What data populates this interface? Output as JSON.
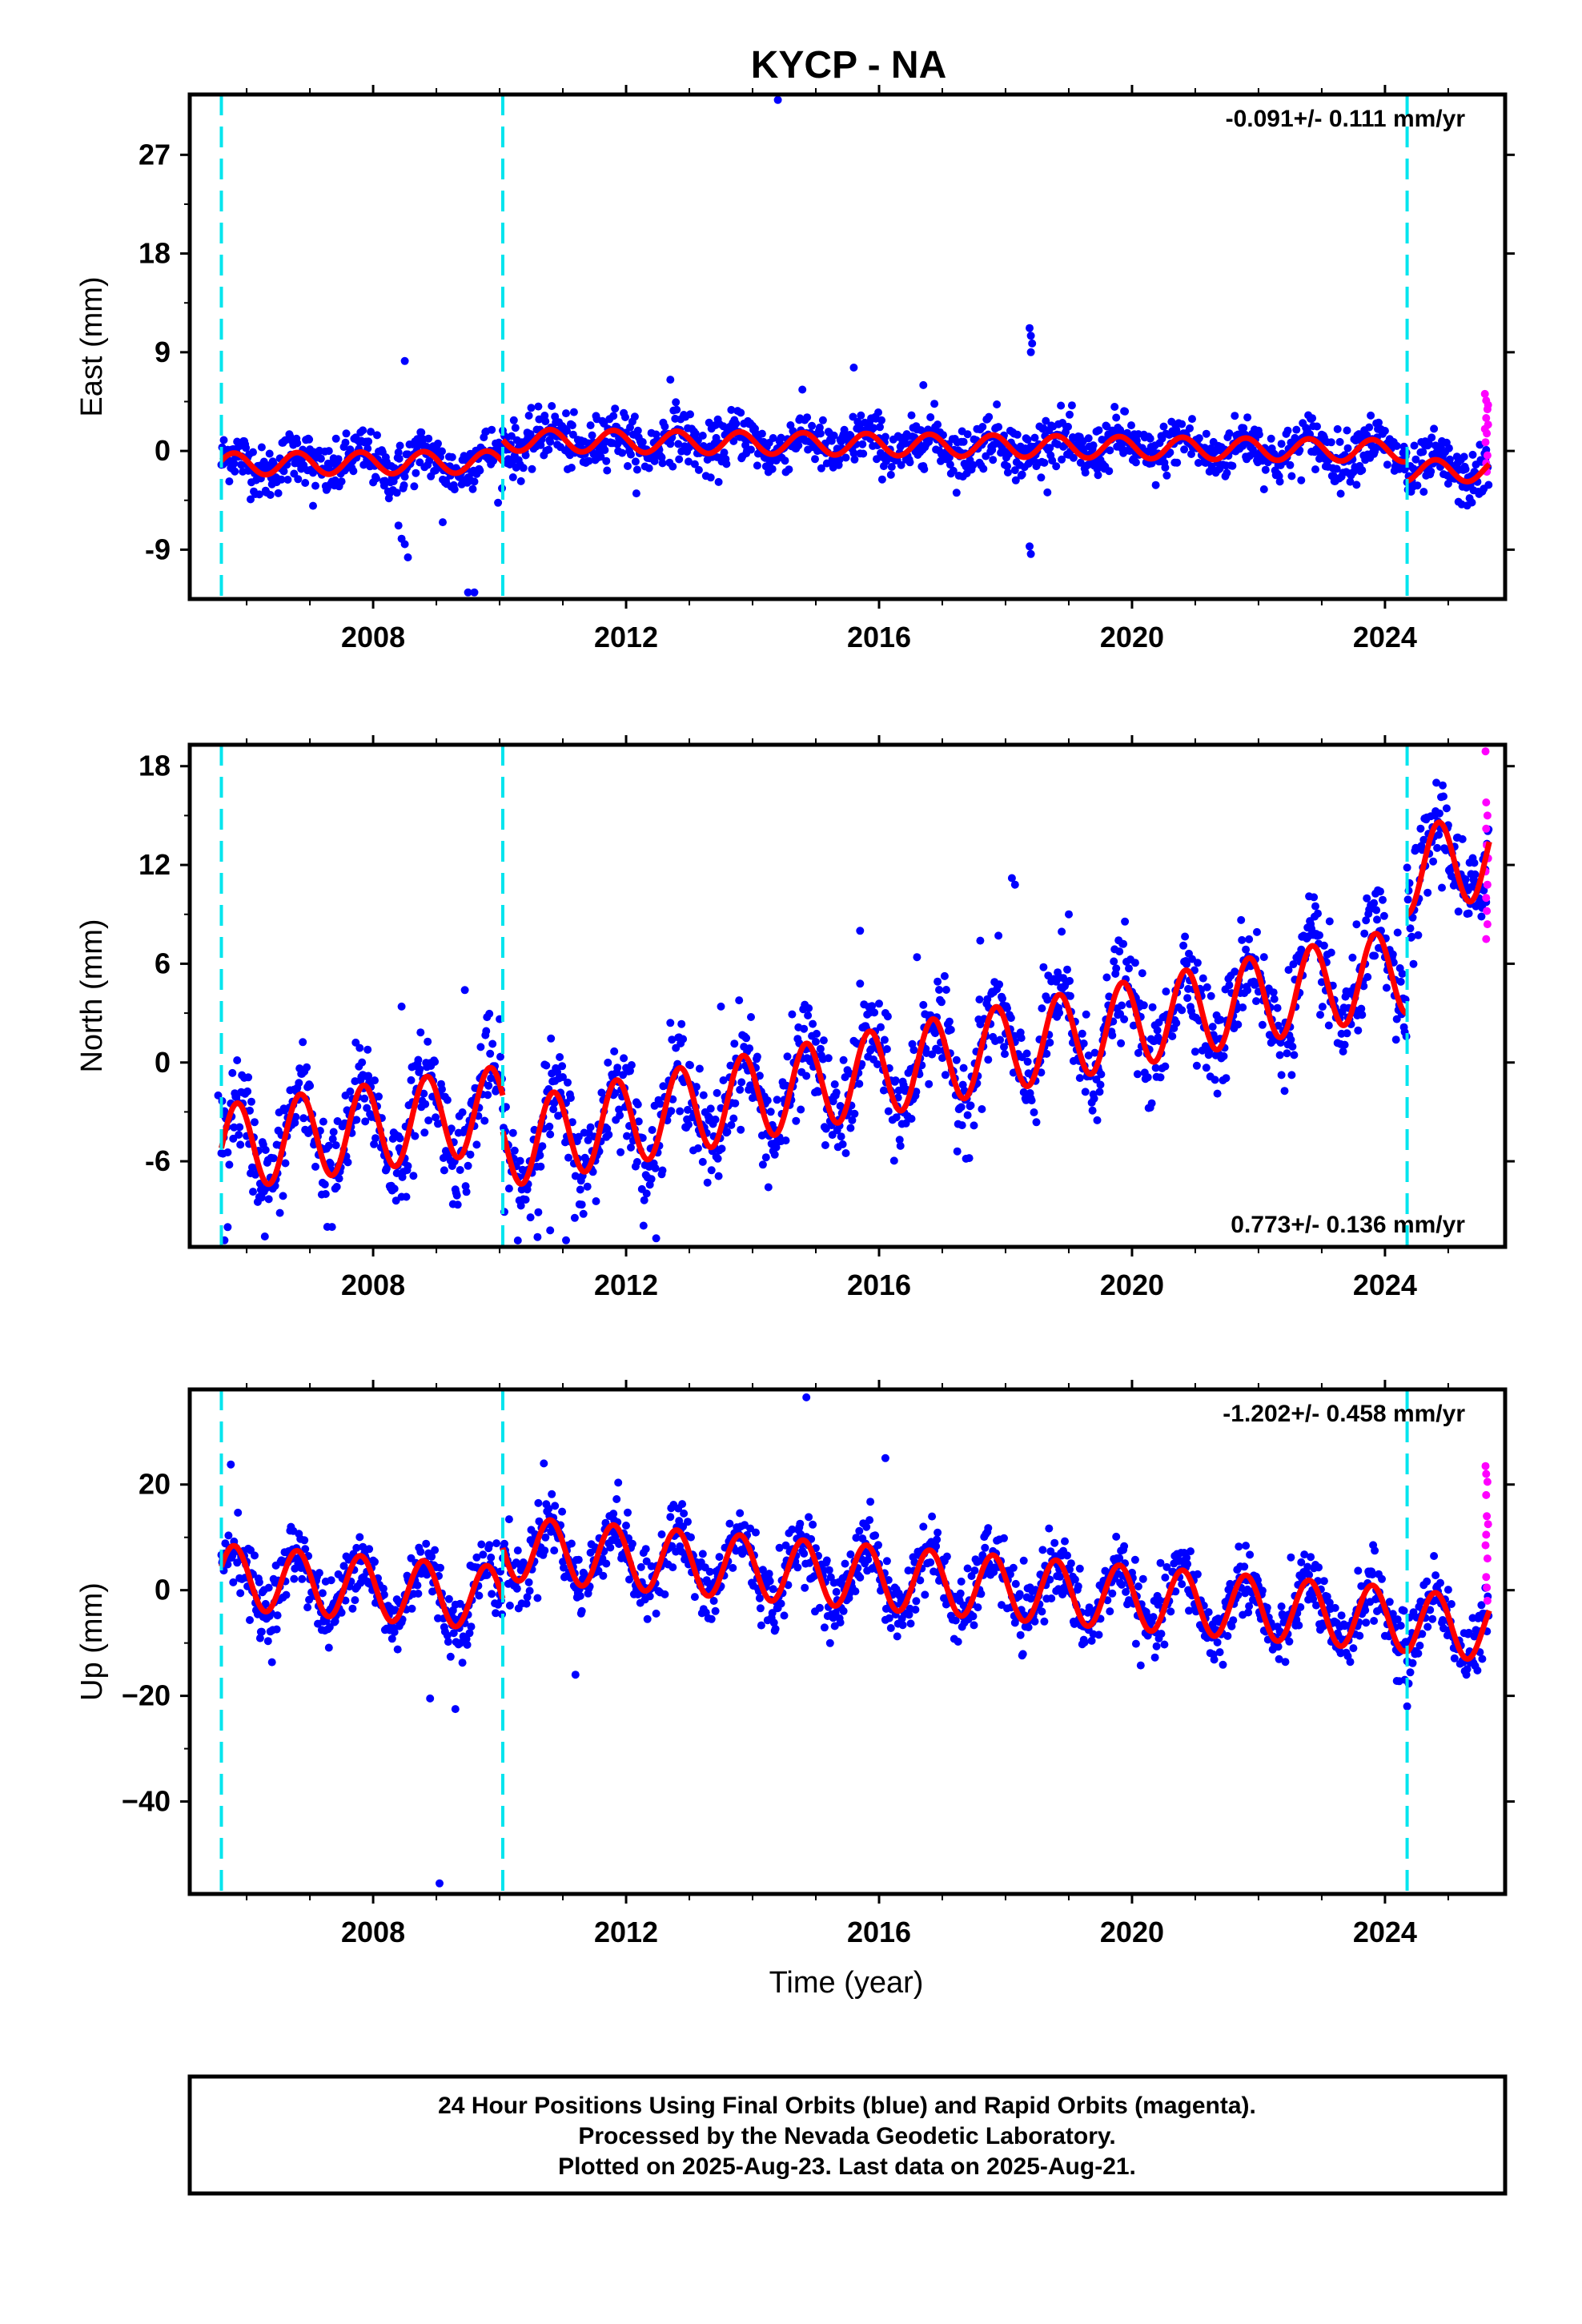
{
  "chart_data": {
    "type": "scatter",
    "title": "KYCP - NA",
    "xlabel": "Time (year)",
    "xlim": [
      2005.1,
      2025.9
    ],
    "xticks": [
      2008,
      2012,
      2016,
      2020,
      2024
    ],
    "xtick_labels": [
      "2008",
      "2012",
      "2016",
      "2020",
      "2024"
    ],
    "offset_epochs": [
      2005.6,
      2010.05,
      2024.35
    ],
    "colors": {
      "final_orbits": "#0000ff",
      "rapid_orbits": "#ff00ff",
      "model": "#ff0000",
      "offset_lines": "#00e5ee"
    },
    "panels": [
      {
        "component": "East",
        "ylabel": "East (mm)",
        "ylim": [
          -13.5,
          32.5
        ],
        "yticks": [
          -9,
          0,
          9,
          18,
          27
        ],
        "ytick_labels": [
          "-9",
          "0",
          "9",
          "18",
          "27"
        ],
        "rate_label": "-0.091+/- 0.111 mm/yr",
        "rate_position": "top-right",
        "model": {
          "segments": [
            {
              "start": 2005.6,
              "end": 2010.05,
              "level_start": -1.2,
              "level_end": -1.0
            },
            {
              "start": 2010.05,
              "end": 2024.35,
              "level_start": 1.0,
              "level_end": 0.0
            },
            {
              "start": 2024.35,
              "end": 2025.65,
              "level_start": -1.8,
              "level_end": -1.8
            }
          ],
          "annual_amplitude": 1.0,
          "annual_phase": 0.55,
          "residual_scatter": 1.2
        },
        "outliers": [
          {
            "x": 2014.4,
            "y": 32.0
          },
          {
            "x": 2008.5,
            "y": 8.2
          },
          {
            "x": 2008.45,
            "y": -8.0
          },
          {
            "x": 2008.5,
            "y": -8.5
          },
          {
            "x": 2008.55,
            "y": -9.7
          },
          {
            "x": 2008.4,
            "y": -6.8
          },
          {
            "x": 2009.1,
            "y": -6.5
          },
          {
            "x": 2009.5,
            "y": -12.9
          },
          {
            "x": 2009.6,
            "y": -12.9
          },
          {
            "x": 2007.05,
            "y": -5.0
          },
          {
            "x": 2018.38,
            "y": 11.2
          },
          {
            "x": 2018.4,
            "y": 10.5
          },
          {
            "x": 2018.42,
            "y": 9.8
          },
          {
            "x": 2018.4,
            "y": 9.0
          },
          {
            "x": 2018.38,
            "y": -8.7
          },
          {
            "x": 2018.4,
            "y": -9.4
          },
          {
            "x": 2015.6,
            "y": 7.6
          },
          {
            "x": 2012.7,
            "y": 6.5
          },
          {
            "x": 2016.7,
            "y": 6.0
          }
        ],
        "rapid_points": [
          {
            "x": 2025.58,
            "y": 5.2
          },
          {
            "x": 2025.6,
            "y": 4.6
          },
          {
            "x": 2025.62,
            "y": 3.8
          },
          {
            "x": 2025.6,
            "y": 3.0
          },
          {
            "x": 2025.63,
            "y": 2.4
          },
          {
            "x": 2025.61,
            "y": 1.6
          },
          {
            "x": 2025.59,
            "y": 0.8
          },
          {
            "x": 2025.62,
            "y": -0.4
          },
          {
            "x": 2025.6,
            "y": -1.1
          },
          {
            "x": 2025.61,
            "y": -1.9
          },
          {
            "x": 2025.63,
            "y": 4.2
          },
          {
            "x": 2025.58,
            "y": 2.0
          }
        ]
      },
      {
        "component": "North",
        "ylabel": "North (mm)",
        "ylim": [
          -11.2,
          19.3
        ],
        "yticks": [
          -6,
          0,
          6,
          12,
          18
        ],
        "ytick_labels": [
          "-6",
          "0",
          "6",
          "12",
          "18"
        ],
        "rate_label": "0.773+/- 0.136 mm/yr",
        "rate_position": "bottom-right",
        "model": {
          "segments": [
            {
              "start": 2005.6,
              "end": 2010.05,
              "level_start": -5.2,
              "level_end": -2.8
            },
            {
              "start": 2010.05,
              "end": 2024.35,
              "level_start": -5.0,
              "level_end": 5.6
            },
            {
              "start": 2024.35,
              "end": 2025.65,
              "level_start": 11.6,
              "level_end": 12.6
            }
          ],
          "annual_amplitude": 2.6,
          "annual_phase": 0.6,
          "residual_scatter": 1.5
        },
        "outliers": [
          {
            "x": 2005.65,
            "y": -10.8
          },
          {
            "x": 2005.7,
            "y": -10.0
          },
          {
            "x": 2005.55,
            "y": -2.0
          },
          {
            "x": 2009.45,
            "y": 4.4
          },
          {
            "x": 2010.6,
            "y": -10.6
          },
          {
            "x": 2010.8,
            "y": -10.2
          },
          {
            "x": 2011.05,
            "y": -10.8
          },
          {
            "x": 2015.7,
            "y": 8.0
          },
          {
            "x": 2018.1,
            "y": 11.2
          },
          {
            "x": 2018.15,
            "y": 10.8
          },
          {
            "x": 2008.45,
            "y": 3.4
          },
          {
            "x": 2013.5,
            "y": 3.4
          },
          {
            "x": 2016.6,
            "y": 6.4
          },
          {
            "x": 2017.6,
            "y": 7.4
          },
          {
            "x": 2019.0,
            "y": 9.0
          }
        ],
        "rapid_points": [
          {
            "x": 2025.59,
            "y": 18.9
          },
          {
            "x": 2025.6,
            "y": 15.8
          },
          {
            "x": 2025.62,
            "y": 15.0
          },
          {
            "x": 2025.6,
            "y": 14.2
          },
          {
            "x": 2025.61,
            "y": 13.2
          },
          {
            "x": 2025.63,
            "y": 12.4
          },
          {
            "x": 2025.59,
            "y": 11.6
          },
          {
            "x": 2025.62,
            "y": 10.8
          },
          {
            "x": 2025.6,
            "y": 10.0
          },
          {
            "x": 2025.61,
            "y": 9.2
          },
          {
            "x": 2025.62,
            "y": 8.4
          },
          {
            "x": 2025.6,
            "y": 7.5
          }
        ]
      },
      {
        "component": "Up",
        "ylabel": "Up (mm)",
        "ylim": [
          -57.5,
          38.0
        ],
        "yticks": [
          -40,
          -20,
          0,
          20
        ],
        "ytick_labels": [
          "−40",
          "−20",
          "0",
          "20"
        ],
        "rate_label": "-1.202+/- 0.458 mm/yr",
        "rate_position": "top-right",
        "model": {
          "segments": [
            {
              "start": 2005.6,
              "end": 2010.05,
              "level_start": 2.6,
              "level_end": -1.6
            },
            {
              "start": 2010.05,
              "end": 2024.35,
              "level_start": 8.0,
              "level_end": -5.6
            },
            {
              "start": 2024.35,
              "end": 2025.65,
              "level_start": -6.0,
              "level_end": -7.4
            }
          ],
          "annual_amplitude": 6.0,
          "annual_phase": 0.55,
          "residual_scatter": 3.2
        },
        "outliers": [
          {
            "x": 2009.05,
            "y": -55.5
          },
          {
            "x": 2014.85,
            "y": 36.5
          },
          {
            "x": 2016.1,
            "y": 25.0
          },
          {
            "x": 2008.9,
            "y": -20.5
          },
          {
            "x": 2009.3,
            "y": -22.5
          },
          {
            "x": 2011.2,
            "y": -16.0
          },
          {
            "x": 2024.35,
            "y": -22.0
          },
          {
            "x": 2005.75,
            "y": 23.8
          },
          {
            "x": 2010.7,
            "y": 24.0
          }
        ],
        "rapid_points": [
          {
            "x": 2025.59,
            "y": 23.5
          },
          {
            "x": 2025.6,
            "y": 22.0
          },
          {
            "x": 2025.62,
            "y": 20.5
          },
          {
            "x": 2025.6,
            "y": 18.0
          },
          {
            "x": 2025.61,
            "y": 14.0
          },
          {
            "x": 2025.63,
            "y": 12.5
          },
          {
            "x": 2025.6,
            "y": 10.5
          },
          {
            "x": 2025.59,
            "y": 8.5
          },
          {
            "x": 2025.62,
            "y": 6.0
          },
          {
            "x": 2025.6,
            "y": 2.5
          },
          {
            "x": 2025.61,
            "y": 0.5
          },
          {
            "x": 2025.62,
            "y": -2.0
          }
        ]
      }
    ]
  },
  "footer": {
    "lines": [
      "24 Hour Positions Using Final Orbits (blue) and Rapid Orbits (magenta).",
      "Processed by the Nevada Geodetic Laboratory.",
      "Plotted on 2025-Aug-23. Last data on 2025-Aug-21."
    ]
  }
}
